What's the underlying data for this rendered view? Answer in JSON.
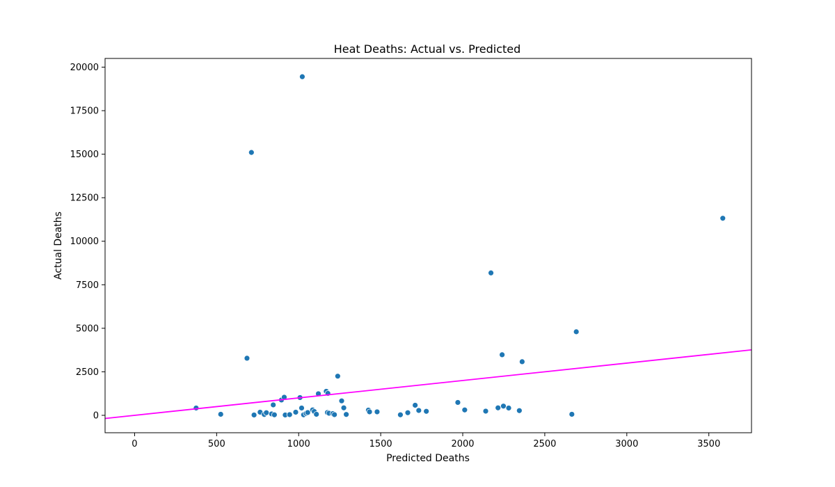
{
  "chart_data": {
    "type": "scatter",
    "title": "Heat Deaths: Actual vs. Predicted",
    "xlabel": "Predicted Deaths",
    "ylabel": "Actual Deaths",
    "xlim": [
      -180,
      3760
    ],
    "ylim": [
      -1000,
      20500
    ],
    "xticks": [
      0,
      500,
      1000,
      1500,
      2000,
      2500,
      3000,
      3500
    ],
    "yticks": [
      0,
      2500,
      5000,
      7500,
      10000,
      12500,
      15000,
      17500,
      20000
    ],
    "grid": false,
    "point_color": "#1f77b4",
    "line_color": "#ff00ff",
    "reference_line": {
      "type": "identity",
      "x": [
        -180,
        3760
      ],
      "y": [
        -180,
        3760
      ]
    },
    "points": [
      {
        "x": 375,
        "y": 420
      },
      {
        "x": 525,
        "y": 60
      },
      {
        "x": 685,
        "y": 3280
      },
      {
        "x": 712,
        "y": 15100
      },
      {
        "x": 728,
        "y": 20
      },
      {
        "x": 765,
        "y": 180
      },
      {
        "x": 790,
        "y": 50
      },
      {
        "x": 803,
        "y": 150
      },
      {
        "x": 835,
        "y": 80
      },
      {
        "x": 845,
        "y": 600
      },
      {
        "x": 852,
        "y": 30
      },
      {
        "x": 895,
        "y": 880
      },
      {
        "x": 912,
        "y": 1040
      },
      {
        "x": 918,
        "y": 20
      },
      {
        "x": 945,
        "y": 40
      },
      {
        "x": 982,
        "y": 180
      },
      {
        "x": 1008,
        "y": 1020
      },
      {
        "x": 1018,
        "y": 420
      },
      {
        "x": 1022,
        "y": 19450
      },
      {
        "x": 1030,
        "y": 30
      },
      {
        "x": 1045,
        "y": 110
      },
      {
        "x": 1055,
        "y": 160
      },
      {
        "x": 1085,
        "y": 310
      },
      {
        "x": 1095,
        "y": 220
      },
      {
        "x": 1108,
        "y": 60
      },
      {
        "x": 1120,
        "y": 1240
      },
      {
        "x": 1168,
        "y": 1380
      },
      {
        "x": 1175,
        "y": 160
      },
      {
        "x": 1178,
        "y": 1260
      },
      {
        "x": 1185,
        "y": 120
      },
      {
        "x": 1208,
        "y": 100
      },
      {
        "x": 1218,
        "y": 40
      },
      {
        "x": 1238,
        "y": 2250
      },
      {
        "x": 1262,
        "y": 830
      },
      {
        "x": 1275,
        "y": 430
      },
      {
        "x": 1290,
        "y": 50
      },
      {
        "x": 1425,
        "y": 300
      },
      {
        "x": 1432,
        "y": 200
      },
      {
        "x": 1478,
        "y": 200
      },
      {
        "x": 1620,
        "y": 30
      },
      {
        "x": 1665,
        "y": 150
      },
      {
        "x": 1710,
        "y": 580
      },
      {
        "x": 1732,
        "y": 280
      },
      {
        "x": 1778,
        "y": 230
      },
      {
        "x": 1970,
        "y": 740
      },
      {
        "x": 2012,
        "y": 310
      },
      {
        "x": 2140,
        "y": 240
      },
      {
        "x": 2172,
        "y": 8180
      },
      {
        "x": 2215,
        "y": 430
      },
      {
        "x": 2240,
        "y": 3480
      },
      {
        "x": 2248,
        "y": 530
      },
      {
        "x": 2280,
        "y": 420
      },
      {
        "x": 2345,
        "y": 270
      },
      {
        "x": 2362,
        "y": 3080
      },
      {
        "x": 2665,
        "y": 60
      },
      {
        "x": 2692,
        "y": 4800
      },
      {
        "x": 3585,
        "y": 11320
      }
    ]
  }
}
